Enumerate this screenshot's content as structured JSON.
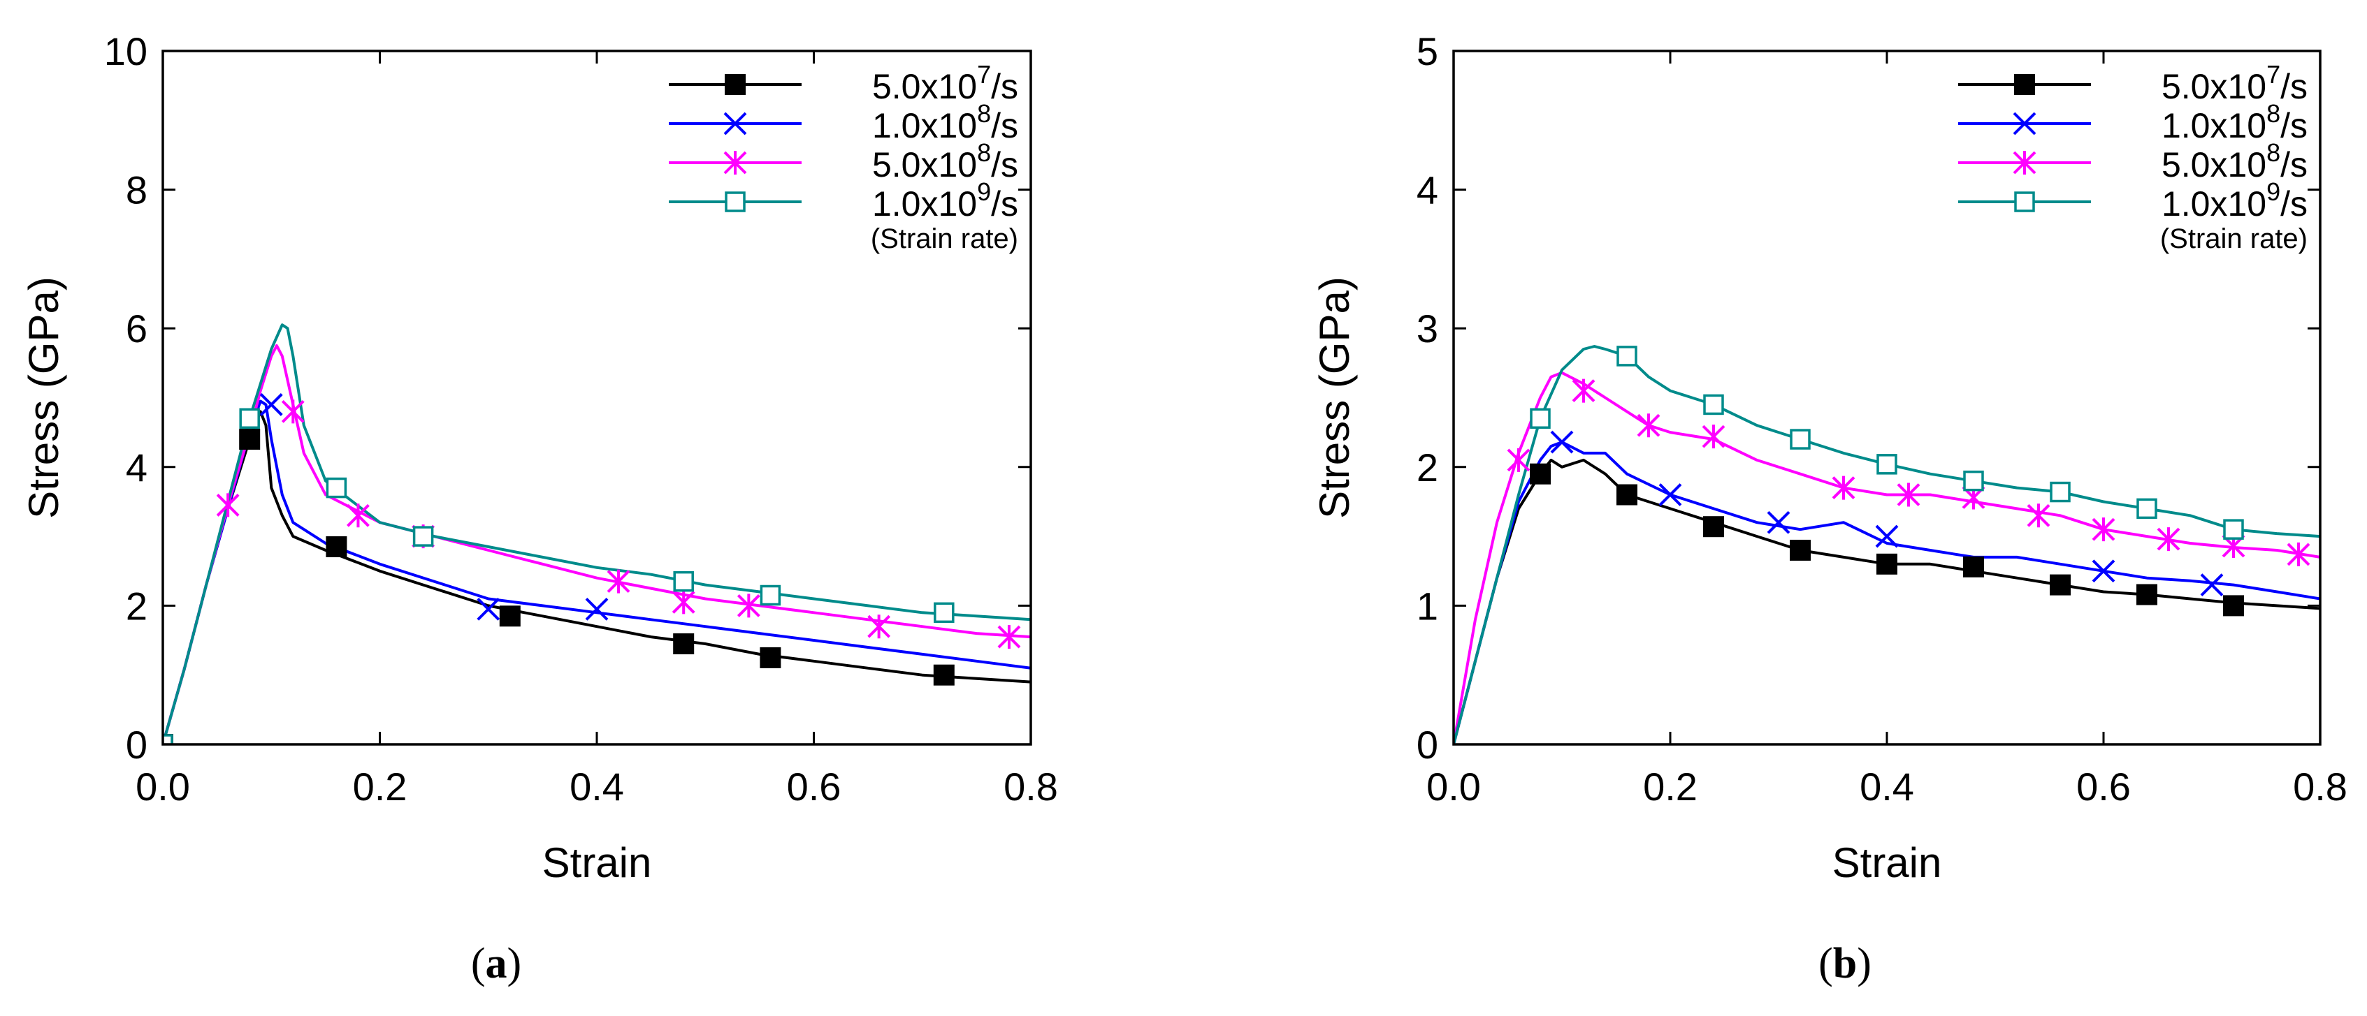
{
  "chart_data": [
    {
      "type": "line",
      "panel": "a",
      "xlabel": "Strain",
      "ylabel": "Stress (GPa)",
      "xlim": [
        0,
        0.8
      ],
      "ylim": [
        0,
        10
      ],
      "xticks": [
        "0.0",
        "0.2",
        "0.4",
        "0.6",
        "0.8"
      ],
      "yticks": [
        "0",
        "2",
        "4",
        "6",
        "8",
        "10"
      ],
      "legend_position": "top-right",
      "legend_note": "(Strain rate)",
      "series": [
        {
          "name": "5.0x10^7/s",
          "label_base": "5.0x10",
          "label_exp": "7",
          "label_unit": "/s",
          "color": "#000000",
          "marker": "filled-square",
          "x": [
            0,
            0.02,
            0.04,
            0.06,
            0.08,
            0.09,
            0.095,
            0.1,
            0.11,
            0.12,
            0.15,
            0.2,
            0.25,
            0.3,
            0.35,
            0.4,
            0.45,
            0.5,
            0.55,
            0.6,
            0.65,
            0.7,
            0.75,
            0.8
          ],
          "y": [
            0,
            1.1,
            2.3,
            3.4,
            4.4,
            4.8,
            4.6,
            3.7,
            3.3,
            3.0,
            2.8,
            2.5,
            2.25,
            2.0,
            1.85,
            1.7,
            1.55,
            1.45,
            1.3,
            1.2,
            1.1,
            1.0,
            0.95,
            0.9
          ],
          "marker_x": [
            0,
            0.08,
            0.16,
            0.32,
            0.48,
            0.56,
            0.72
          ],
          "marker_y": [
            0,
            4.4,
            2.85,
            1.85,
            1.45,
            1.25,
            1.0
          ]
        },
        {
          "name": "1.0x10^8/s",
          "label_base": "1.0x10",
          "label_exp": "8",
          "label_unit": "/s",
          "color": "#0000ff",
          "marker": "x",
          "x": [
            0,
            0.02,
            0.04,
            0.06,
            0.08,
            0.09,
            0.095,
            0.1,
            0.11,
            0.12,
            0.15,
            0.2,
            0.25,
            0.3,
            0.35,
            0.4,
            0.45,
            0.5,
            0.55,
            0.6,
            0.65,
            0.7,
            0.75,
            0.8
          ],
          "y": [
            0,
            1.1,
            2.3,
            3.4,
            4.5,
            4.95,
            4.9,
            4.4,
            3.6,
            3.2,
            2.9,
            2.6,
            2.35,
            2.1,
            2.0,
            1.9,
            1.8,
            1.7,
            1.6,
            1.5,
            1.4,
            1.3,
            1.2,
            1.1
          ],
          "marker_x": [
            0.1,
            0.3,
            0.4
          ],
          "marker_y": [
            4.9,
            1.95,
            1.95
          ]
        },
        {
          "name": "5.0x10^8/s",
          "label_base": "5.0x10",
          "label_exp": "8",
          "label_unit": "/s",
          "color": "#ff00ff",
          "marker": "asterisk",
          "x": [
            0,
            0.02,
            0.04,
            0.06,
            0.08,
            0.09,
            0.1,
            0.105,
            0.11,
            0.12,
            0.13,
            0.15,
            0.2,
            0.25,
            0.3,
            0.35,
            0.4,
            0.45,
            0.5,
            0.55,
            0.6,
            0.65,
            0.7,
            0.75,
            0.8
          ],
          "y": [
            0,
            1.1,
            2.3,
            3.45,
            4.5,
            5.1,
            5.6,
            5.75,
            5.6,
            4.9,
            4.2,
            3.6,
            3.2,
            3.0,
            2.8,
            2.6,
            2.4,
            2.25,
            2.1,
            2.0,
            1.9,
            1.8,
            1.7,
            1.6,
            1.55
          ],
          "marker_x": [
            0.06,
            0.12,
            0.18,
            0.24,
            0.42,
            0.48,
            0.54,
            0.66,
            0.78
          ],
          "marker_y": [
            3.45,
            4.8,
            3.3,
            3.0,
            2.35,
            2.05,
            2.0,
            1.7,
            1.55
          ]
        },
        {
          "name": "1.0x10^9/s",
          "label_base": "1.0x10",
          "label_exp": "9",
          "label_unit": "/s",
          "color": "#008b8b",
          "marker": "open-square",
          "x": [
            0,
            0.02,
            0.04,
            0.06,
            0.08,
            0.1,
            0.11,
            0.115,
            0.12,
            0.13,
            0.15,
            0.2,
            0.25,
            0.3,
            0.35,
            0.4,
            0.45,
            0.5,
            0.55,
            0.6,
            0.65,
            0.7,
            0.75,
            0.8
          ],
          "y": [
            0,
            1.1,
            2.3,
            3.5,
            4.7,
            5.7,
            6.05,
            6.0,
            5.6,
            4.6,
            3.8,
            3.2,
            3.0,
            2.85,
            2.7,
            2.55,
            2.45,
            2.3,
            2.2,
            2.1,
            2.0,
            1.9,
            1.85,
            1.8
          ],
          "marker_x": [
            0,
            0.08,
            0.16,
            0.24,
            0.48,
            0.56,
            0.72
          ],
          "marker_y": [
            0,
            4.7,
            3.7,
            3.0,
            2.35,
            2.15,
            1.9
          ]
        }
      ]
    },
    {
      "type": "line",
      "panel": "b",
      "xlabel": "Strain",
      "ylabel": "Stress (GPa)",
      "xlim": [
        0,
        0.8
      ],
      "ylim": [
        0,
        5
      ],
      "xticks": [
        "0.0",
        "0.2",
        "0.4",
        "0.6",
        "0.8"
      ],
      "yticks": [
        "0",
        "1",
        "2",
        "3",
        "4",
        "5"
      ],
      "legend_position": "top-right",
      "legend_note": "(Strain rate)",
      "series": [
        {
          "name": "5.0x10^7/s",
          "label_base": "5.0x10",
          "label_exp": "7",
          "label_unit": "/s",
          "color": "#000000",
          "marker": "filled-square",
          "x": [
            0,
            0.02,
            0.04,
            0.06,
            0.08,
            0.09,
            0.1,
            0.12,
            0.14,
            0.16,
            0.2,
            0.24,
            0.28,
            0.32,
            0.36,
            0.4,
            0.44,
            0.48,
            0.52,
            0.56,
            0.6,
            0.64,
            0.68,
            0.72,
            0.76,
            0.8
          ],
          "y": [
            0,
            0.6,
            1.2,
            1.7,
            1.95,
            2.05,
            2.0,
            2.05,
            1.95,
            1.8,
            1.7,
            1.6,
            1.5,
            1.4,
            1.35,
            1.3,
            1.3,
            1.25,
            1.2,
            1.15,
            1.1,
            1.08,
            1.05,
            1.02,
            1.0,
            0.98
          ],
          "marker_x": [
            0.08,
            0.16,
            0.24,
            0.32,
            0.4,
            0.48,
            0.56,
            0.64,
            0.72
          ],
          "marker_y": [
            1.95,
            1.8,
            1.57,
            1.4,
            1.3,
            1.28,
            1.15,
            1.08,
            1.0
          ]
        },
        {
          "name": "1.0x10^8/s",
          "label_base": "1.0x10",
          "label_exp": "8",
          "label_unit": "/s",
          "color": "#0000ff",
          "marker": "x",
          "x": [
            0,
            0.02,
            0.04,
            0.06,
            0.08,
            0.09,
            0.1,
            0.12,
            0.14,
            0.16,
            0.2,
            0.24,
            0.28,
            0.32,
            0.36,
            0.4,
            0.44,
            0.48,
            0.52,
            0.56,
            0.6,
            0.64,
            0.68,
            0.72,
            0.76,
            0.8
          ],
          "y": [
            0,
            0.6,
            1.2,
            1.75,
            2.05,
            2.15,
            2.18,
            2.1,
            2.1,
            1.95,
            1.8,
            1.7,
            1.6,
            1.55,
            1.6,
            1.45,
            1.4,
            1.35,
            1.35,
            1.3,
            1.25,
            1.2,
            1.18,
            1.15,
            1.1,
            1.05
          ],
          "marker_x": [
            0.1,
            0.2,
            0.3,
            0.4,
            0.6,
            0.7
          ],
          "marker_y": [
            2.18,
            1.8,
            1.6,
            1.5,
            1.25,
            1.15
          ]
        },
        {
          "name": "5.0x10^8/s",
          "label_base": "5.0x10",
          "label_exp": "8",
          "label_unit": "/s",
          "color": "#ff00ff",
          "marker": "asterisk",
          "x": [
            0,
            0.02,
            0.04,
            0.06,
            0.08,
            0.09,
            0.1,
            0.12,
            0.14,
            0.16,
            0.18,
            0.2,
            0.24,
            0.28,
            0.32,
            0.36,
            0.4,
            0.44,
            0.48,
            0.52,
            0.56,
            0.6,
            0.64,
            0.68,
            0.72,
            0.76,
            0.8
          ],
          "y": [
            0,
            0.9,
            1.6,
            2.1,
            2.5,
            2.65,
            2.68,
            2.6,
            2.5,
            2.4,
            2.3,
            2.25,
            2.2,
            2.05,
            1.95,
            1.85,
            1.8,
            1.8,
            1.75,
            1.7,
            1.65,
            1.55,
            1.5,
            1.45,
            1.42,
            1.4,
            1.35
          ],
          "marker_x": [
            0.06,
            0.12,
            0.18,
            0.24,
            0.36,
            0.42,
            0.48,
            0.54,
            0.6,
            0.66,
            0.72,
            0.78
          ],
          "marker_y": [
            2.05,
            2.55,
            2.3,
            2.22,
            1.85,
            1.8,
            1.78,
            1.65,
            1.55,
            1.48,
            1.43,
            1.37
          ]
        },
        {
          "name": "1.0x10^9/s",
          "label_base": "1.0x10",
          "label_exp": "9",
          "label_unit": "/s",
          "color": "#008b8b",
          "marker": "open-square",
          "x": [
            0,
            0.02,
            0.04,
            0.06,
            0.08,
            0.1,
            0.12,
            0.13,
            0.14,
            0.16,
            0.18,
            0.2,
            0.24,
            0.28,
            0.32,
            0.36,
            0.4,
            0.44,
            0.48,
            0.52,
            0.56,
            0.6,
            0.64,
            0.68,
            0.72,
            0.76,
            0.8
          ],
          "y": [
            0,
            0.6,
            1.2,
            1.8,
            2.35,
            2.7,
            2.85,
            2.87,
            2.85,
            2.8,
            2.65,
            2.55,
            2.45,
            2.3,
            2.2,
            2.1,
            2.02,
            1.95,
            1.9,
            1.85,
            1.82,
            1.75,
            1.7,
            1.65,
            1.55,
            1.52,
            1.5
          ],
          "marker_x": [
            0.08,
            0.16,
            0.24,
            0.32,
            0.4,
            0.48,
            0.56,
            0.64,
            0.72
          ],
          "marker_y": [
            2.35,
            2.8,
            2.45,
            2.2,
            2.02,
            1.9,
            1.82,
            1.7,
            1.55
          ]
        }
      ]
    }
  ],
  "captions": {
    "a": "a",
    "b": "b"
  }
}
